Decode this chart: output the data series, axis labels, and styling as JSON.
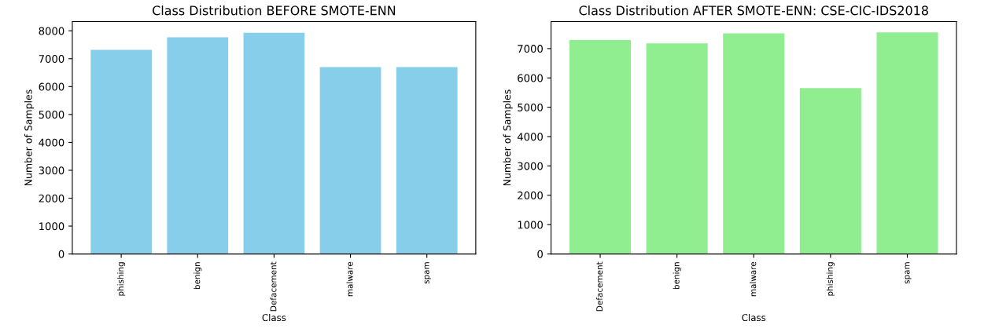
{
  "chart_data": [
    {
      "type": "bar",
      "title": "Class Distribution BEFORE SMOTE-ENN",
      "xlabel": "Class",
      "ylabel": "Number of Samples",
      "categories": [
        "phishing",
        "benign",
        "Defacement",
        "malware",
        "spam"
      ],
      "values": [
        7320,
        7770,
        7930,
        6700,
        6700
      ],
      "color": "#87ceeb",
      "ylim": [
        0,
        8330
      ],
      "yticks": [
        0,
        1000,
        2000,
        3000,
        4000,
        5000,
        6000,
        7000,
        8000
      ],
      "grid": false,
      "legend": false
    },
    {
      "type": "bar",
      "title": "Class Distribution AFTER SMOTE-ENN: CSE-CIC-IDS2018",
      "xlabel": "Class",
      "ylabel": "Number of Samples",
      "categories": [
        "Defacement",
        "benign",
        "malware",
        "phishing",
        "spam"
      ],
      "values": [
        7290,
        7180,
        7520,
        5650,
        7550
      ],
      "color": "#90ee90",
      "ylim": [
        0,
        7920
      ],
      "yticks": [
        0,
        1000,
        2000,
        3000,
        4000,
        5000,
        6000,
        7000
      ],
      "grid": false,
      "legend": false
    }
  ]
}
